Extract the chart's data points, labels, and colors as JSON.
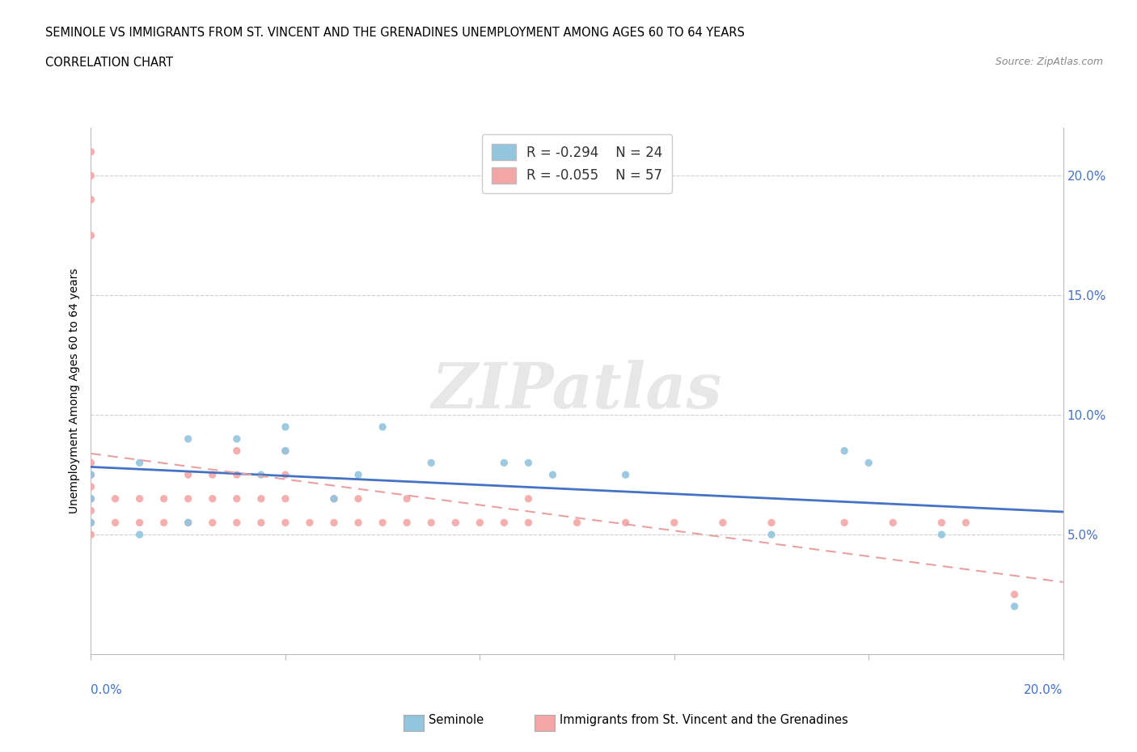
{
  "title_line1": "SEMINOLE VS IMMIGRANTS FROM ST. VINCENT AND THE GRENADINES UNEMPLOYMENT AMONG AGES 60 TO 64 YEARS",
  "title_line2": "CORRELATION CHART",
  "source_text": "Source: ZipAtlas.com",
  "ylabel": "Unemployment Among Ages 60 to 64 years",
  "blue_color": "#92c5de",
  "pink_color": "#f4a6a6",
  "blue_line_color": "#4472c4",
  "pink_line_color": "#e8a0a0",
  "watermark_text": "ZIPatlas",
  "legend_label1": "R = -0.294    N = 24",
  "legend_label2": "R = -0.055    N = 57",
  "ytick_labels": [
    "5.0%",
    "10.0%",
    "15.0%",
    "20.0%"
  ],
  "ytick_vals": [
    0.05,
    0.1,
    0.15,
    0.2
  ],
  "seminole_x": [
    0.0,
    0.0,
    0.0,
    0.01,
    0.01,
    0.02,
    0.02,
    0.03,
    0.035,
    0.04,
    0.04,
    0.05,
    0.055,
    0.06,
    0.07,
    0.085,
    0.09,
    0.095,
    0.11,
    0.14,
    0.155,
    0.16,
    0.175,
    0.19
  ],
  "seminole_y": [
    0.055,
    0.065,
    0.075,
    0.05,
    0.08,
    0.055,
    0.09,
    0.09,
    0.075,
    0.085,
    0.095,
    0.065,
    0.075,
    0.095,
    0.08,
    0.08,
    0.08,
    0.075,
    0.075,
    0.05,
    0.085,
    0.08,
    0.05,
    0.02
  ],
  "svgr_x": [
    0.0,
    0.0,
    0.0,
    0.0,
    0.0,
    0.0,
    0.0,
    0.0,
    0.0,
    0.0,
    0.0,
    0.005,
    0.005,
    0.01,
    0.01,
    0.015,
    0.015,
    0.02,
    0.02,
    0.02,
    0.025,
    0.025,
    0.025,
    0.03,
    0.03,
    0.03,
    0.03,
    0.035,
    0.035,
    0.04,
    0.04,
    0.04,
    0.04,
    0.045,
    0.05,
    0.05,
    0.055,
    0.055,
    0.06,
    0.065,
    0.065,
    0.07,
    0.075,
    0.08,
    0.085,
    0.09,
    0.09,
    0.1,
    0.11,
    0.12,
    0.13,
    0.14,
    0.155,
    0.165,
    0.175,
    0.18,
    0.19
  ],
  "svgr_y": [
    0.05,
    0.055,
    0.06,
    0.065,
    0.07,
    0.075,
    0.08,
    0.175,
    0.19,
    0.2,
    0.21,
    0.055,
    0.065,
    0.055,
    0.065,
    0.055,
    0.065,
    0.055,
    0.065,
    0.075,
    0.055,
    0.065,
    0.075,
    0.055,
    0.065,
    0.075,
    0.085,
    0.055,
    0.065,
    0.055,
    0.065,
    0.075,
    0.085,
    0.055,
    0.055,
    0.065,
    0.055,
    0.065,
    0.055,
    0.055,
    0.065,
    0.055,
    0.055,
    0.055,
    0.055,
    0.055,
    0.065,
    0.055,
    0.055,
    0.055,
    0.055,
    0.055,
    0.055,
    0.055,
    0.055,
    0.055,
    0.025
  ],
  "xlim": [
    0.0,
    0.2
  ],
  "ylim": [
    0.0,
    0.22
  ],
  "xtick_positions": [
    0.0,
    0.04,
    0.08,
    0.12,
    0.16,
    0.2
  ]
}
